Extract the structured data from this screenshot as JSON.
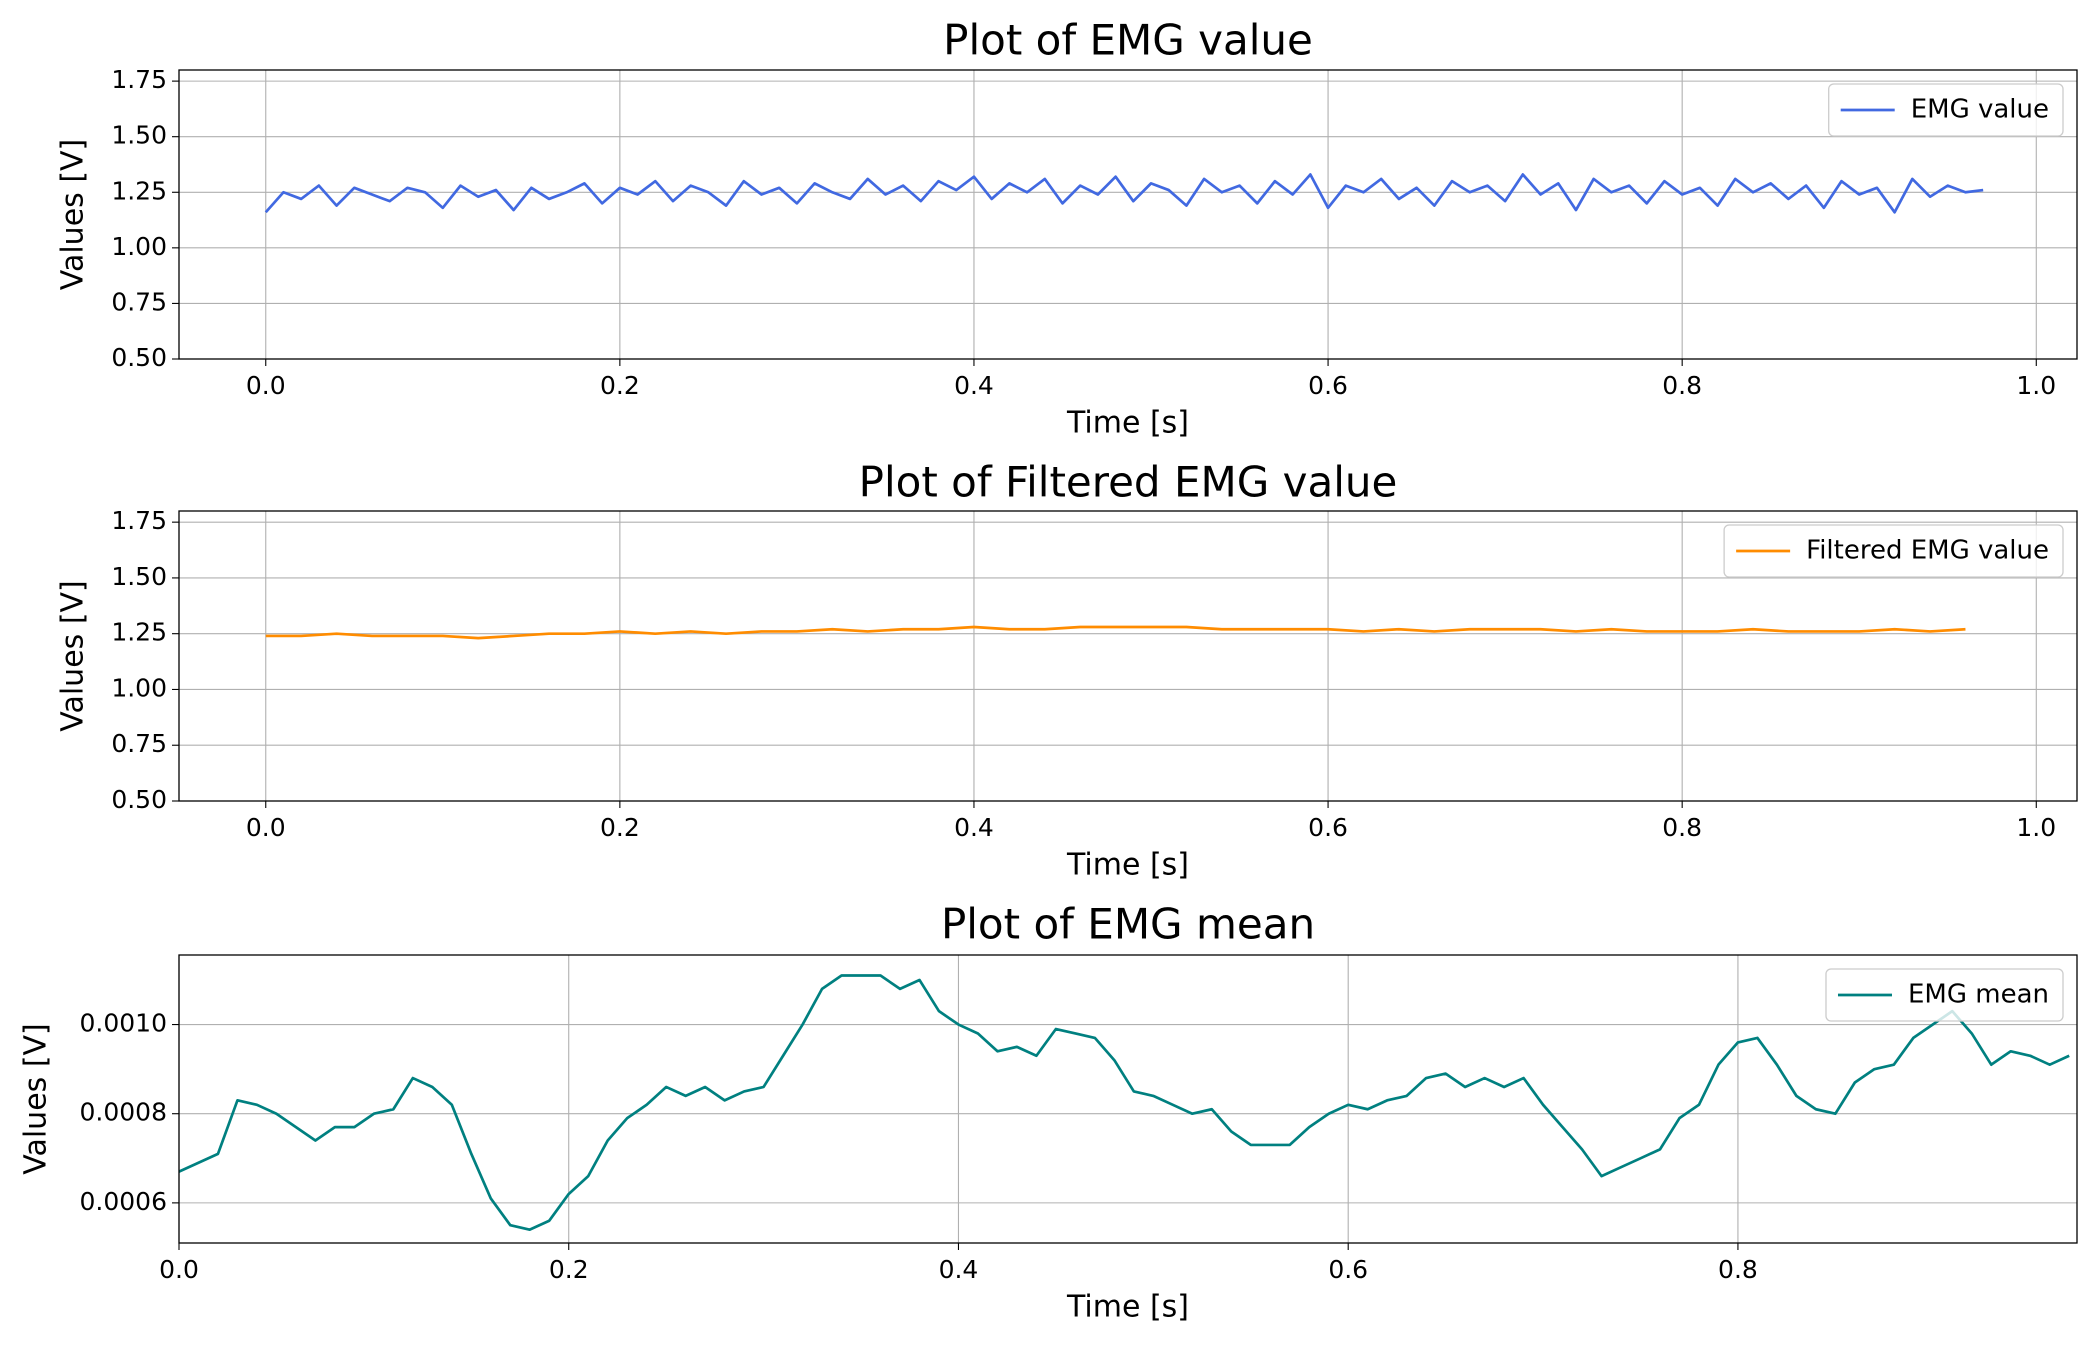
{
  "chart_data": [
    {
      "type": "line",
      "title": "Plot of EMG value",
      "x_label": "Time [s]",
      "y_label": "Values [V]",
      "x": [
        0,
        0.01,
        0.02,
        0.03,
        0.04,
        0.05,
        0.06,
        0.07,
        0.08,
        0.09,
        0.1,
        0.11,
        0.12,
        0.13,
        0.14,
        0.15,
        0.16,
        0.17,
        0.18,
        0.19,
        0.2,
        0.21,
        0.22,
        0.23,
        0.24,
        0.25,
        0.26,
        0.27,
        0.28,
        0.29,
        0.3,
        0.31,
        0.32,
        0.33,
        0.34,
        0.35,
        0.36,
        0.37,
        0.38,
        0.39,
        0.4,
        0.41,
        0.42,
        0.43,
        0.44,
        0.45,
        0.46,
        0.47,
        0.48,
        0.49,
        0.5,
        0.51,
        0.52,
        0.53,
        0.54,
        0.55,
        0.56,
        0.57,
        0.58,
        0.59,
        0.6,
        0.61,
        0.62,
        0.63,
        0.64,
        0.65,
        0.66,
        0.67,
        0.68,
        0.69,
        0.7,
        0.71,
        0.72,
        0.73,
        0.74,
        0.75,
        0.76,
        0.77,
        0.78,
        0.79,
        0.8,
        0.81,
        0.82,
        0.83,
        0.84,
        0.85,
        0.86,
        0.87,
        0.88,
        0.89,
        0.9,
        0.91,
        0.92,
        0.93,
        0.94,
        0.95,
        0.96,
        0.97
      ],
      "series": [
        {
          "name": "EMG value",
          "color": "#4169e1",
          "values": [
            1.16,
            1.25,
            1.22,
            1.28,
            1.19,
            1.27,
            1.24,
            1.21,
            1.27,
            1.25,
            1.18,
            1.28,
            1.23,
            1.26,
            1.17,
            1.27,
            1.22,
            1.25,
            1.29,
            1.2,
            1.27,
            1.24,
            1.3,
            1.21,
            1.28,
            1.25,
            1.19,
            1.3,
            1.24,
            1.27,
            1.2,
            1.29,
            1.25,
            1.22,
            1.31,
            1.24,
            1.28,
            1.21,
            1.3,
            1.26,
            1.32,
            1.22,
            1.29,
            1.25,
            1.31,
            1.2,
            1.28,
            1.24,
            1.32,
            1.21,
            1.29,
            1.26,
            1.19,
            1.31,
            1.25,
            1.28,
            1.2,
            1.3,
            1.24,
            1.33,
            1.18,
            1.28,
            1.25,
            1.31,
            1.22,
            1.27,
            1.19,
            1.3,
            1.25,
            1.28,
            1.21,
            1.33,
            1.24,
            1.29,
            1.17,
            1.31,
            1.25,
            1.28,
            1.2,
            1.3,
            1.24,
            1.27,
            1.19,
            1.31,
            1.25,
            1.29,
            1.22,
            1.28,
            1.18,
            1.3,
            1.24,
            1.27,
            1.16,
            1.31,
            1.23,
            1.28,
            1.25,
            1.26
          ]
        }
      ],
      "xlim": [
        -0.049,
        1.023
      ],
      "ylim": [
        0.5,
        1.8
      ],
      "xticks": [
        {
          "value": 0,
          "label": "0.0"
        },
        0.2,
        0.4,
        0.6,
        0.8,
        {
          "value": 1,
          "label": "1.0"
        }
      ],
      "yticks": [
        {
          "value": 0.5,
          "label": "0.50"
        },
        0.75,
        {
          "value": 1,
          "label": "1.00"
        },
        1.25,
        {
          "value": 1.5,
          "label": "1.50"
        },
        1.75
      ],
      "grid": true,
      "legend": "upper right"
    },
    {
      "type": "line",
      "title": "Plot of Filtered EMG value",
      "x_label": "Time [s]",
      "y_label": "Values [V]",
      "x": [
        0,
        0.02,
        0.04,
        0.06,
        0.08,
        0.1,
        0.12,
        0.14,
        0.16,
        0.18,
        0.2,
        0.22,
        0.24,
        0.26,
        0.28,
        0.3,
        0.32,
        0.34,
        0.36,
        0.38,
        0.4,
        0.42,
        0.44,
        0.46,
        0.48,
        0.5,
        0.52,
        0.54,
        0.56,
        0.58,
        0.6,
        0.62,
        0.64,
        0.66,
        0.68,
        0.7,
        0.72,
        0.74,
        0.76,
        0.78,
        0.8,
        0.82,
        0.84,
        0.86,
        0.88,
        0.9,
        0.92,
        0.94,
        0.96
      ],
      "series": [
        {
          "name": "Filtered EMG value",
          "color": "#ff8c00",
          "values": [
            1.24,
            1.24,
            1.25,
            1.24,
            1.24,
            1.24,
            1.23,
            1.24,
            1.25,
            1.25,
            1.26,
            1.25,
            1.26,
            1.25,
            1.26,
            1.26,
            1.27,
            1.26,
            1.27,
            1.27,
            1.28,
            1.27,
            1.27,
            1.28,
            1.28,
            1.28,
            1.28,
            1.27,
            1.27,
            1.27,
            1.27,
            1.26,
            1.27,
            1.26,
            1.27,
            1.27,
            1.27,
            1.26,
            1.27,
            1.26,
            1.26,
            1.26,
            1.27,
            1.26,
            1.26,
            1.26,
            1.27,
            1.26,
            1.27
          ]
        }
      ],
      "xlim": [
        -0.049,
        1.023
      ],
      "ylim": [
        0.5,
        1.8
      ],
      "xticks": [
        {
          "value": 0,
          "label": "0.0"
        },
        0.2,
        0.4,
        0.6,
        0.8,
        {
          "value": 1,
          "label": "1.0"
        }
      ],
      "yticks": [
        {
          "value": 0.5,
          "label": "0.50"
        },
        0.75,
        {
          "value": 1,
          "label": "1.00"
        },
        1.25,
        {
          "value": 1.5,
          "label": "1.50"
        },
        1.75
      ],
      "grid": true,
      "legend": "upper right"
    },
    {
      "type": "line",
      "title": "Plot of EMG mean",
      "x_label": "Time [s]",
      "y_label": "Values [V]",
      "x": [
        0,
        0.01,
        0.02,
        0.03,
        0.04,
        0.05,
        0.06,
        0.07,
        0.08,
        0.09,
        0.1,
        0.11,
        0.12,
        0.13,
        0.14,
        0.15,
        0.16,
        0.17,
        0.18,
        0.19,
        0.2,
        0.21,
        0.22,
        0.23,
        0.24,
        0.25,
        0.26,
        0.27,
        0.28,
        0.29,
        0.3,
        0.31,
        0.32,
        0.33,
        0.34,
        0.35,
        0.36,
        0.37,
        0.38,
        0.39,
        0.4,
        0.41,
        0.42,
        0.43,
        0.44,
        0.45,
        0.46,
        0.47,
        0.48,
        0.49,
        0.5,
        0.51,
        0.52,
        0.53,
        0.54,
        0.55,
        0.56,
        0.57,
        0.58,
        0.59,
        0.6,
        0.61,
        0.62,
        0.63,
        0.64,
        0.65,
        0.66,
        0.67,
        0.68,
        0.69,
        0.7,
        0.71,
        0.72,
        0.73,
        0.74,
        0.75,
        0.76,
        0.77,
        0.78,
        0.79,
        0.8,
        0.81,
        0.82,
        0.83,
        0.84,
        0.85,
        0.86,
        0.87,
        0.88,
        0.89,
        0.9,
        0.91,
        0.92,
        0.93,
        0.94,
        0.95,
        0.96,
        0.97
      ],
      "series": [
        {
          "name": "EMG mean",
          "color": "#008080",
          "values": [
            0.00067,
            0.00069,
            0.00071,
            0.00083,
            0.00082,
            0.0008,
            0.00077,
            0.00074,
            0.00077,
            0.00077,
            0.0008,
            0.00081,
            0.00088,
            0.00086,
            0.00082,
            0.00071,
            0.00061,
            0.00055,
            0.00054,
            0.00056,
            0.00062,
            0.00066,
            0.00074,
            0.00079,
            0.00082,
            0.00086,
            0.00084,
            0.00086,
            0.00083,
            0.00085,
            0.00086,
            0.00093,
            0.001,
            0.00108,
            0.00111,
            0.00111,
            0.00111,
            0.00108,
            0.0011,
            0.00103,
            0.001,
            0.00098,
            0.00094,
            0.00095,
            0.00093,
            0.00099,
            0.00098,
            0.00097,
            0.00092,
            0.00085,
            0.00084,
            0.00082,
            0.0008,
            0.00081,
            0.00076,
            0.00073,
            0.00073,
            0.00073,
            0.00077,
            0.0008,
            0.00082,
            0.00081,
            0.00083,
            0.00084,
            0.00088,
            0.00089,
            0.00086,
            0.00088,
            0.00086,
            0.00088,
            0.00082,
            0.00077,
            0.00072,
            0.00066,
            0.00068,
            0.0007,
            0.00072,
            0.00079,
            0.00082,
            0.00091,
            0.00096,
            0.00097,
            0.00091,
            0.00084,
            0.00081,
            0.0008,
            0.00087,
            0.0009,
            0.00091,
            0.00097,
            0.001,
            0.00103,
            0.00098,
            0.00091,
            0.00094,
            0.00093,
            0.00091,
            0.00093
          ]
        }
      ],
      "xlim": [
        0,
        0.974
      ],
      "ylim": [
        0.00051,
        0.001156
      ],
      "xticks": [
        {
          "value": 0,
          "label": "0.0"
        },
        0.2,
        0.4,
        0.6,
        0.8
      ],
      "yticks": [
        0.0006,
        0.0008,
        {
          "value": 0.001,
          "label": "0.0010"
        }
      ],
      "grid": true,
      "legend": "upper right"
    }
  ]
}
